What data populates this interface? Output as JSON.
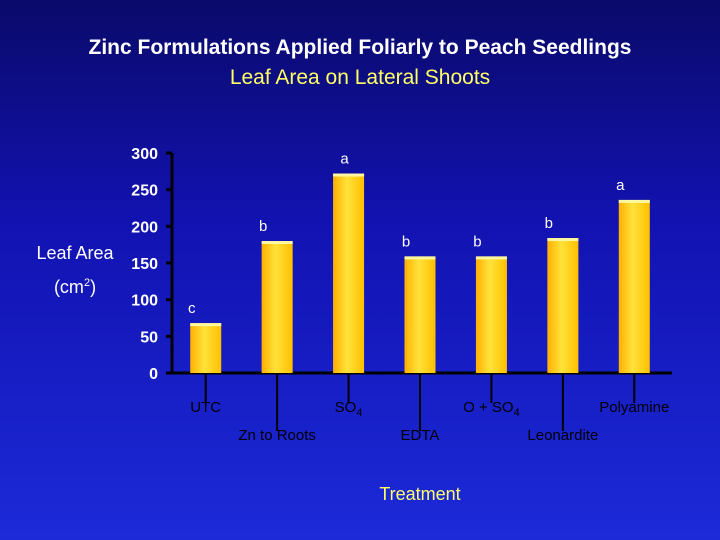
{
  "chart_data": {
    "type": "bar",
    "title": "Zinc Formulations Applied Foliarly to Peach Seedlings",
    "subtitle": "Leaf Area on Lateral Shoots",
    "ylabel": "Leaf Area",
    "ylabel_unit": "(cm",
    "ylabel_unit_sup": "2",
    "ylabel_unit_close": ")",
    "xlabel": "Treatment",
    "ylim": [
      0,
      300
    ],
    "yticks": [
      "0",
      "50",
      "100",
      "150",
      "200",
      "250",
      "300"
    ],
    "categories": [
      {
        "label": "UTC",
        "sub": ""
      },
      {
        "label": "Zn to Roots",
        "sub": ""
      },
      {
        "label": "SO",
        "sub": "4"
      },
      {
        "label": "EDTA",
        "sub": ""
      },
      {
        "label": "O + SO",
        "sub": "4"
      },
      {
        "label": "Leonardite",
        "sub": ""
      },
      {
        "label": "Polyamine",
        "sub": ""
      }
    ],
    "values": [
      68,
      180,
      272,
      159,
      159,
      184,
      236
    ],
    "letters": [
      "c",
      "b",
      "a",
      "b",
      "b",
      "b",
      "a"
    ],
    "colors": {
      "bar_top": "#fff8a0",
      "bar_mid": "#ffd21a",
      "bar_bottom": "#ffb800",
      "axis": "#000000",
      "tick_text": "#ffffff",
      "category_text": "#000000",
      "letter_text": "#ffffff"
    }
  }
}
